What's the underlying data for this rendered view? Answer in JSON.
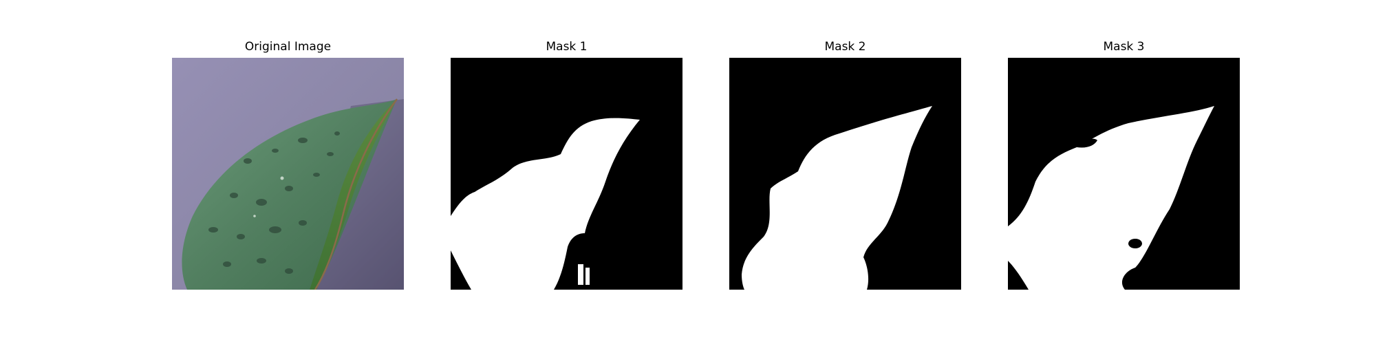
{
  "figure": {
    "panels": [
      {
        "title": "Original Image",
        "kind": "photo"
      },
      {
        "title": "Mask 1",
        "kind": "mask"
      },
      {
        "title": "Mask 2",
        "kind": "mask"
      },
      {
        "title": "Mask 3",
        "kind": "mask"
      }
    ]
  },
  "colors": {
    "photo_background": "#8f8aa8",
    "leaf_main": "#5a8a66",
    "leaf_edge": "#4f7e3f",
    "mask_background": "#000000",
    "mask_foreground": "#ffffff"
  }
}
